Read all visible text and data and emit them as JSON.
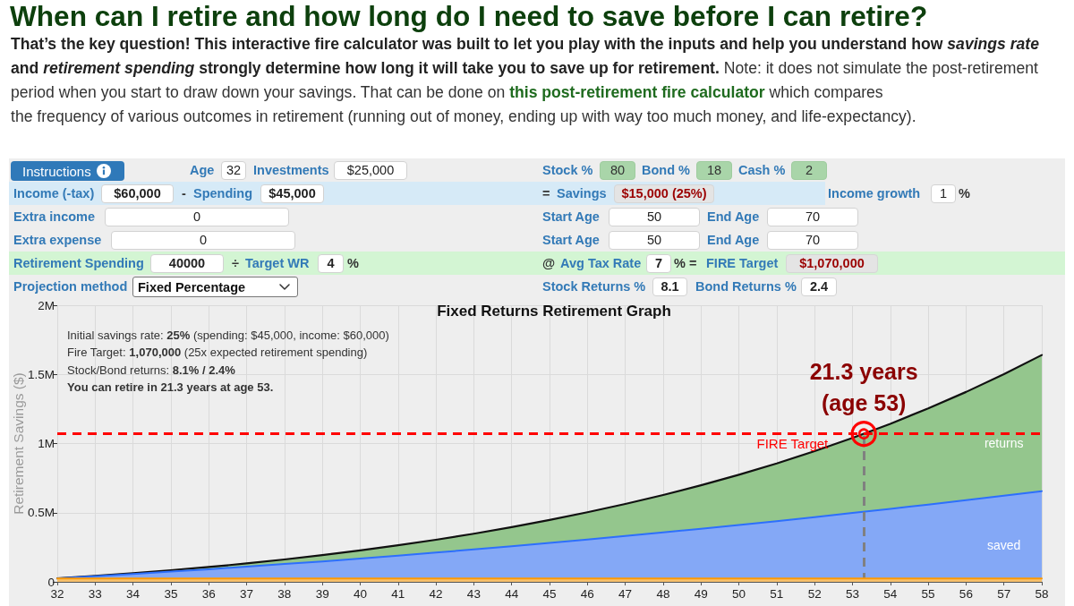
{
  "chart_data": [
    {
      "type": "other",
      "title": "When can I retire and how long do I need to save before I can retire?",
      "annotations": [
        "That’s the key question! This interactive fire calculator was built to let you play with the inputs and help you understand how",
        "savings rate",
        "and",
        "retirement spending",
        "strongly determine how long it will take you to save up for retirement.",
        "Note: it does not simulate the post-retirement",
        "period when you start to draw down your savings. That can be done on",
        "this post-retirement fire calculator",
        "which compares",
        "the frequency of various outcomes in retirement (running out of money, ending up with way too much money, and life-expectancy).",
        "Instructions",
        "Age",
        "32",
        "Investments",
        "$25,000",
        "Stock %",
        "80",
        "Bond %",
        "18",
        "Cash %",
        "2",
        "Income (-tax)",
        "$60,000",
        "-",
        "Spending",
        "$45,000",
        "=",
        "Savings",
        "$15,000 (25%)",
        "Income growth",
        "1",
        "%",
        "Extra income",
        "0",
        "Start Age",
        "50",
        "End Age",
        "70",
        "Extra expense",
        "0",
        "Start Age",
        "50",
        "End Age",
        "70",
        "Retirement Spending",
        "40000",
        "÷",
        "Target WR",
        "4",
        "%",
        "@",
        "Avg Tax Rate",
        "7",
        "%",
        "=",
        "FIRE Target",
        "$1,070,000",
        "Projection method",
        "Fixed Percentage",
        "Stock Returns %",
        "8.1",
        "Bond Returns %",
        "2.4"
      ]
    },
    {
      "type": "area",
      "title": "Fixed Returns Retirement Graph",
      "ylabel": "Retirement Savings ($)",
      "x": [
        32,
        33,
        34,
        35,
        36,
        37,
        38,
        39,
        40,
        41,
        42,
        43,
        44,
        45,
        46,
        47,
        48,
        49,
        50,
        51,
        52,
        53,
        54,
        55,
        56,
        57,
        58
      ],
      "series": [
        {
          "color": "#f7c06c",
          "values": [
            25000,
            25000,
            25000,
            25000,
            25000,
            25000,
            25000,
            25000,
            25000,
            25000,
            25000,
            25000,
            25000,
            25000,
            25000,
            25000,
            25000,
            25000,
            25000,
            25000,
            25000,
            25000,
            25000,
            25000,
            25000,
            25000,
            25000
          ]
        },
        {
          "name": "saved",
          "color": "#84a8f6",
          "values": [
            25000,
            41000,
            57000,
            74000,
            91000,
            110000,
            129000,
            148000,
            169000,
            190000,
            212000,
            234000,
            257000,
            281000,
            306000,
            331000,
            357000,
            384000,
            411000,
            439000,
            468000,
            498000,
            528000,
            559000,
            590000,
            623000,
            656000
          ]
        },
        {
          "name": "returns",
          "color": "#94c68d",
          "values": [
            25000,
            43000,
            62000,
            84000,
            107000,
            133000,
            162000,
            193000,
            227000,
            264000,
            304000,
            348000,
            396000,
            447000,
            503000,
            563000,
            628000,
            698000,
            774000,
            856000,
            945000,
            1040000,
            1143000,
            1254000,
            1373000,
            1501000,
            1640000
          ]
        }
      ],
      "xlim": [
        32,
        58
      ],
      "xticks": [
        32,
        33,
        34,
        35,
        36,
        37,
        38,
        39,
        40,
        41,
        42,
        43,
        44,
        45,
        46,
        47,
        48,
        49,
        50,
        51,
        52,
        53,
        54,
        55,
        56,
        57,
        58
      ],
      "ylim": [
        0,
        2000000
      ],
      "yticks": [
        0,
        {
          "value": 500000,
          "label": "0.5M"
        },
        {
          "value": 1000000,
          "label": "1M"
        },
        {
          "value": 1500000,
          "label": "1.5M"
        },
        {
          "value": 2000000,
          "label": "2M"
        }
      ],
      "grid": true,
      "ref_lines": [
        {
          "axis": "y",
          "value": 1070000,
          "label": "FIRE Target",
          "color": "#ff0000",
          "line_style": "dashed"
        },
        {
          "axis": "x",
          "value": 53.3,
          "color": "#808080",
          "line_style": "dashed"
        }
      ],
      "annotations": [
        "Initial savings rate:",
        "25%",
        "(spending: $45,000, income: $60,000)",
        "Fire Target:",
        "1,070,000",
        "(25x expected retirement spending)",
        "Stock/Bond returns:",
        "8.1% / 2.4%",
        "You can retire in 21.3 years at age 53.",
        {
          "text": "21.3 years\n(age 53)",
          "x": 53.3,
          "y": 1070000
        }
      ]
    }
  ]
}
